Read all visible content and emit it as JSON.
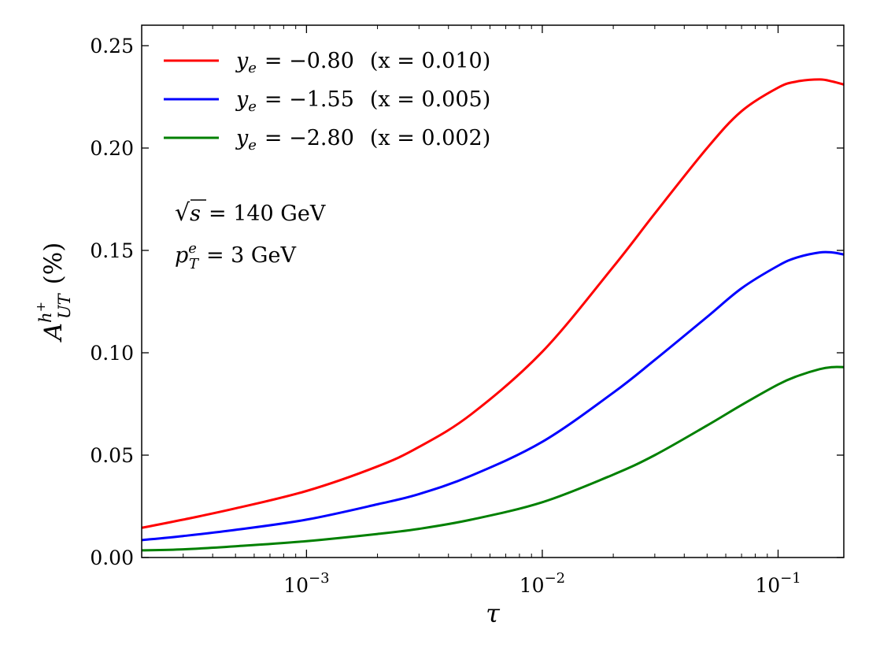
{
  "chart_data": {
    "type": "line",
    "title": "",
    "xlabel": "τ",
    "ylabel": "A_UT^{h+} (%)",
    "ylabel_parts": {
      "main": "A",
      "sup": "h",
      "sup2": "+",
      "sub": "UT",
      "unit": "(%)"
    },
    "xscale": "log",
    "xlim": [
      0.0002,
      0.19
    ],
    "ylim": [
      0.0,
      0.26
    ],
    "x_tick_labels": [
      {
        "value": 0.001,
        "base": "10",
        "exp": "−3"
      },
      {
        "value": 0.01,
        "base": "10",
        "exp": "−2"
      },
      {
        "value": 0.1,
        "base": "10",
        "exp": "−1"
      }
    ],
    "y_ticks": [
      0.0,
      0.05,
      0.1,
      0.15,
      0.2,
      0.25
    ],
    "y_tick_labels": [
      "0.00",
      "0.05",
      "0.10",
      "0.15",
      "0.20",
      "0.25"
    ],
    "legend_position": "top-left",
    "series": [
      {
        "name": "y_e = −0.80 (x = 0.010)",
        "label_var": "y",
        "label_sub": "e",
        "label_value": "= −0.80",
        "label_x": "(x = 0.010)",
        "color": "#ff0000",
        "x": [
          0.0002,
          0.0003,
          0.0005,
          0.001,
          0.002,
          0.003,
          0.005,
          0.01,
          0.02,
          0.03,
          0.05,
          0.07,
          0.1,
          0.12,
          0.15,
          0.17,
          0.19
        ],
        "y": [
          0.0145,
          0.0185,
          0.024,
          0.0325,
          0.0445,
          0.054,
          0.07,
          0.1005,
          0.142,
          0.168,
          0.2,
          0.218,
          0.2295,
          0.2325,
          0.2335,
          0.2325,
          0.231
        ]
      },
      {
        "name": "y_e = −1.55 (x = 0.005)",
        "label_var": "y",
        "label_sub": "e",
        "label_value": "= −1.55",
        "label_x": "(x = 0.005)",
        "color": "#0000ff",
        "x": [
          0.0002,
          0.0003,
          0.0005,
          0.001,
          0.002,
          0.003,
          0.005,
          0.01,
          0.02,
          0.03,
          0.05,
          0.07,
          0.1,
          0.12,
          0.15,
          0.17,
          0.19
        ],
        "y": [
          0.0085,
          0.0105,
          0.0135,
          0.0185,
          0.026,
          0.031,
          0.04,
          0.0565,
          0.0805,
          0.0965,
          0.1175,
          0.1315,
          0.1425,
          0.1465,
          0.149,
          0.149,
          0.148
        ]
      },
      {
        "name": "y_e = −2.80 (x = 0.002)",
        "label_var": "y",
        "label_sub": "e",
        "label_value": "= −2.80",
        "label_x": "(x = 0.002)",
        "color": "#008000",
        "x": [
          0.0002,
          0.0003,
          0.0005,
          0.001,
          0.002,
          0.003,
          0.005,
          0.01,
          0.02,
          0.03,
          0.05,
          0.07,
          0.1,
          0.12,
          0.15,
          0.17,
          0.19
        ],
        "y": [
          0.0035,
          0.004,
          0.0055,
          0.008,
          0.0115,
          0.014,
          0.0185,
          0.027,
          0.0405,
          0.05,
          0.0645,
          0.0745,
          0.0845,
          0.0885,
          0.092,
          0.093,
          0.093
        ]
      }
    ],
    "annotations": {
      "sqrt_s": {
        "symbol": "√",
        "var": "s",
        "value": "= 140 GeV"
      },
      "pT": {
        "var": "p",
        "sub": "T",
        "sup": "e",
        "value": "= 3 GeV"
      }
    }
  }
}
